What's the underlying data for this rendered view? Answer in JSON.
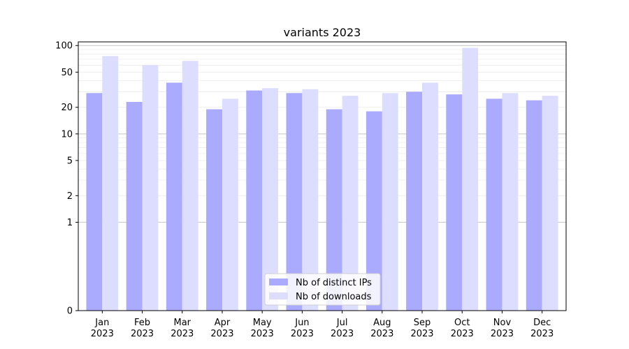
{
  "chart_data": {
    "type": "bar",
    "title": "variants 2023",
    "xlabel": "",
    "ylabel": "",
    "yscale": "symlog",
    "ylim": [
      0,
      110
    ],
    "yticks": [
      0,
      1,
      2,
      5,
      10,
      20,
      50,
      100
    ],
    "ytick_labels": [
      "0",
      "1",
      "2",
      "5",
      "10",
      "20",
      "50",
      "100"
    ],
    "categories": [
      "Jan\n2023",
      "Feb\n2023",
      "Mar\n2023",
      "Apr\n2023",
      "May\n2023",
      "Jun\n2023",
      "Jul\n2023",
      "Aug\n2023",
      "Sep\n2023",
      "Oct\n2023",
      "Nov\n2023",
      "Dec\n2023"
    ],
    "series": [
      {
        "name": "Nb of distinct IPs",
        "color": "#aaaaff",
        "values": [
          29,
          23,
          38,
          19,
          31,
          29,
          19,
          18,
          30,
          28,
          25,
          24
        ]
      },
      {
        "name": "Nb of downloads",
        "color": "#ddddff",
        "values": [
          76,
          60,
          67,
          25,
          33,
          32,
          27,
          29,
          38,
          94,
          29,
          27
        ]
      }
    ],
    "grid": true,
    "legend_position": "lower center"
  }
}
